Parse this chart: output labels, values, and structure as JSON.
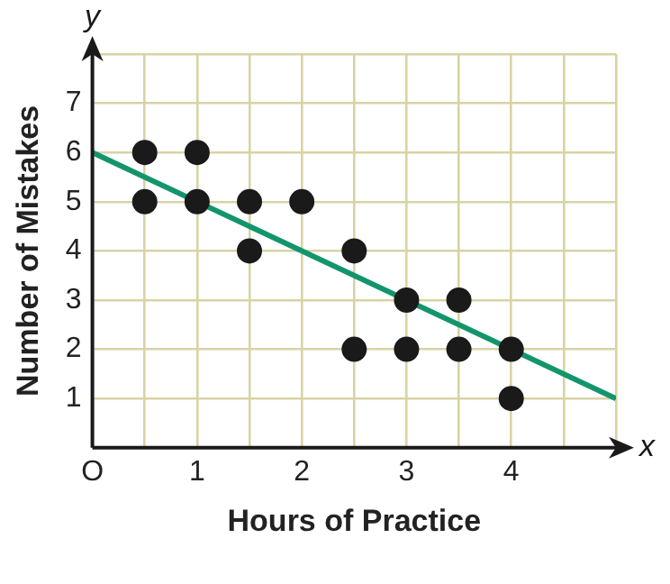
{
  "chart_data": {
    "type": "scatter",
    "xlabel": "Hours of Practice",
    "ylabel": "Number of Mistakes",
    "annotations": [
      "x",
      "y"
    ],
    "xlim": [
      0,
      5
    ],
    "ylim": [
      0,
      8
    ],
    "xticks": [
      {
        "value": 0,
        "label": "O"
      },
      {
        "value": 0.5,
        "label": null
      },
      1,
      {
        "value": 1.5,
        "label": null
      },
      2,
      {
        "value": 2.5,
        "label": null
      },
      3,
      {
        "value": 3.5,
        "label": null
      },
      4,
      {
        "value": 4.5,
        "label": null
      },
      {
        "value": 5,
        "label": null
      }
    ],
    "yticks": [
      1,
      2,
      3,
      4,
      5,
      6,
      7,
      {
        "value": 8,
        "label": null
      }
    ],
    "grid": true,
    "marker": "circle",
    "series": [
      {
        "color": "#1a1a1a",
        "x": [
          0.5,
          0.5,
          1,
          1,
          1.5,
          1.5,
          2,
          2.5,
          2.5,
          3,
          3,
          3.5,
          3.5,
          4,
          4
        ],
        "values": [
          6,
          5,
          6,
          5,
          5,
          4,
          5,
          4,
          2,
          3,
          2,
          3,
          2,
          2,
          1
        ]
      },
      {
        "type": "line",
        "marker": "none",
        "color": "#13956c",
        "x": [
          0,
          5
        ],
        "values": [
          6,
          1
        ]
      }
    ]
  }
}
